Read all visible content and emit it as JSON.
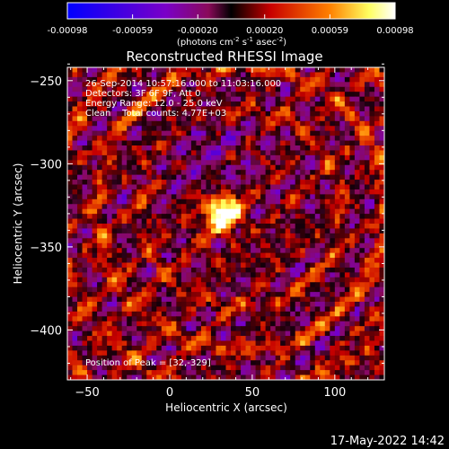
{
  "colorbar": {
    "ticks": [
      "-0.00098",
      "-0.00059",
      "-0.00020",
      "0.00020",
      "0.00059",
      "0.00098"
    ],
    "tick_values": [
      -0.00098,
      -0.00059,
      -0.0002,
      0.0002,
      0.00059,
      0.00098
    ],
    "range": [
      -0.00098,
      0.00098
    ],
    "unit_label_parts": [
      "(photons cm",
      "-2",
      " s",
      "-1",
      " asec",
      "-2",
      ")"
    ],
    "colors": [
      "#0000ff",
      "#7a00c8",
      "#8a0a5a",
      "#000000",
      "#c80000",
      "#ff8000",
      "#ffff60",
      "#ffffff"
    ]
  },
  "chart_data": {
    "type": "heatmap",
    "title": "Reconstructed RHESSI Image",
    "xlabel": "Heliocentric X (arcsec)",
    "ylabel": "Heliocentric Y (arcsec)",
    "xlim": [
      -62,
      130
    ],
    "ylim": [
      -430,
      -242
    ],
    "xticks": [
      -50,
      0,
      50,
      100
    ],
    "yticks": [
      -250,
      -300,
      -350,
      -400
    ],
    "info_lines": [
      "26-Sep-2014 10:57:16.000 to 11:03:16.000",
      "Detectors: 3F 6F 9F, Att 0",
      "Energy Range: 12.0 - 25.0 keV",
      "Clean    Total counts: 4.77E+03"
    ],
    "peak_label": "Position of Peak = [32,-329]",
    "peak": [
      32,
      -329
    ]
  },
  "timestamp": "17-May-2022 14:42"
}
